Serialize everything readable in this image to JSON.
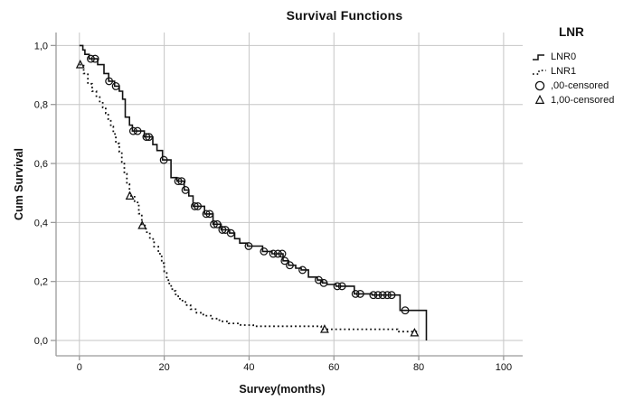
{
  "chart_data": {
    "type": "line",
    "subtype": "kaplan-meier-survival-step",
    "title": "Survival Functions",
    "xlabel": "Survey(months)",
    "ylabel": "Cum Survival",
    "xlim": [
      -5.5,
      104.5
    ],
    "ylim": [
      -0.052,
      1.044
    ],
    "grid": true,
    "x_ticks": {
      "values": [
        0,
        20,
        40,
        60,
        80,
        100
      ],
      "labels": [
        "0",
        "20",
        "40",
        "60",
        "80",
        "100"
      ]
    },
    "y_ticks": {
      "values": [
        0,
        0.2,
        0.4,
        0.6,
        0.8,
        1.0
      ],
      "labels": [
        "0,0",
        "0,2",
        "0,4",
        "0,6",
        "0,8",
        "1,0"
      ]
    },
    "colors": {
      "curve": "#111111",
      "grid": "#c6c6c6",
      "axis": "#9a9a9a",
      "text": "#111111",
      "background": "#ffffff"
    },
    "legend": {
      "title": "LNR",
      "position": "right",
      "entries": [
        {
          "label": "LNR0",
          "symbol": "solid-step-line"
        },
        {
          "label": "LNR1",
          "symbol": "dotted-step-line"
        },
        {
          "label": ",00-censored",
          "symbol": "open-circle"
        },
        {
          "label": "1,00-censored",
          "symbol": "open-triangle"
        }
      ]
    },
    "series": [
      {
        "name": "LNR0",
        "style": "solid-step",
        "steps": [
          [
            0,
            1.0
          ],
          [
            0.8,
            0.985
          ],
          [
            1.3,
            0.97
          ],
          [
            2.3,
            0.955
          ],
          [
            4.3,
            0.935
          ],
          [
            5.8,
            0.905
          ],
          [
            6.9,
            0.879
          ],
          [
            8.3,
            0.862
          ],
          [
            9.4,
            0.845
          ],
          [
            10.2,
            0.818
          ],
          [
            10.8,
            0.757
          ],
          [
            11.8,
            0.73
          ],
          [
            12.5,
            0.71
          ],
          [
            15.3,
            0.69
          ],
          [
            17.3,
            0.664
          ],
          [
            18.3,
            0.644
          ],
          [
            19.6,
            0.612
          ],
          [
            21.6,
            0.552
          ],
          [
            23,
            0.54
          ],
          [
            24.7,
            0.51
          ],
          [
            25.8,
            0.49
          ],
          [
            26.8,
            0.455
          ],
          [
            29.5,
            0.429
          ],
          [
            31.5,
            0.394
          ],
          [
            33.4,
            0.375
          ],
          [
            35.4,
            0.364
          ],
          [
            36.6,
            0.345
          ],
          [
            37.8,
            0.33
          ],
          [
            39.6,
            0.32
          ],
          [
            43.2,
            0.302
          ],
          [
            45.4,
            0.294
          ],
          [
            48,
            0.27
          ],
          [
            49.3,
            0.255
          ],
          [
            51,
            0.245
          ],
          [
            52.3,
            0.239
          ],
          [
            54,
            0.215
          ],
          [
            56.1,
            0.205
          ],
          [
            57.3,
            0.195
          ],
          [
            58.4,
            0.19
          ],
          [
            60.5,
            0.184
          ],
          [
            64.8,
            0.158
          ],
          [
            69,
            0.154
          ],
          [
            75.6,
            0.102
          ],
          [
            81.8,
            0
          ]
        ],
        "censored": {
          "marker": "circle",
          "points": [
            [
              2.7,
              0.955
            ],
            [
              3.7,
              0.955
            ],
            [
              7,
              0.879
            ],
            [
              8.6,
              0.862
            ],
            [
              12.7,
              0.71
            ],
            [
              13.7,
              0.71
            ],
            [
              15.8,
              0.69
            ],
            [
              16.4,
              0.69
            ],
            [
              19.9,
              0.612
            ],
            [
              23.3,
              0.54
            ],
            [
              24.1,
              0.54
            ],
            [
              25,
              0.51
            ],
            [
              27.2,
              0.455
            ],
            [
              27.9,
              0.455
            ],
            [
              29.9,
              0.429
            ],
            [
              30.7,
              0.429
            ],
            [
              31.7,
              0.394
            ],
            [
              32.5,
              0.394
            ],
            [
              33.7,
              0.375
            ],
            [
              34.4,
              0.375
            ],
            [
              35.7,
              0.364
            ],
            [
              39.9,
              0.32
            ],
            [
              43.5,
              0.302
            ],
            [
              45.7,
              0.294
            ],
            [
              46.8,
              0.294
            ],
            [
              47.8,
              0.294
            ],
            [
              48.4,
              0.27
            ],
            [
              49.6,
              0.255
            ],
            [
              52.6,
              0.239
            ],
            [
              56.4,
              0.205
            ],
            [
              57.6,
              0.195
            ],
            [
              60.8,
              0.184
            ],
            [
              61.9,
              0.184
            ],
            [
              65.1,
              0.158
            ],
            [
              66.2,
              0.158
            ],
            [
              69.3,
              0.154
            ],
            [
              70.4,
              0.154
            ],
            [
              71.5,
              0.154
            ],
            [
              72.6,
              0.154
            ],
            [
              73.6,
              0.154
            ],
            [
              76.8,
              0.102
            ]
          ]
        }
      },
      {
        "name": "LNR1",
        "style": "dotted-step",
        "steps": [
          [
            0,
            0.935
          ],
          [
            1,
            0.905
          ],
          [
            2,
            0.87
          ],
          [
            3,
            0.845
          ],
          [
            4,
            0.825
          ],
          [
            4.8,
            0.81
          ],
          [
            5.5,
            0.79
          ],
          [
            6.2,
            0.77
          ],
          [
            6.8,
            0.75
          ],
          [
            7.4,
            0.725
          ],
          [
            8,
            0.7
          ],
          [
            8.6,
            0.668
          ],
          [
            9.4,
            0.64
          ],
          [
            10,
            0.605
          ],
          [
            10.6,
            0.565
          ],
          [
            11.2,
            0.53
          ],
          [
            11.8,
            0.49
          ],
          [
            13,
            0.468
          ],
          [
            14,
            0.43
          ],
          [
            14.7,
            0.39
          ],
          [
            15.7,
            0.367
          ],
          [
            16.6,
            0.344
          ],
          [
            17.6,
            0.318
          ],
          [
            18.6,
            0.294
          ],
          [
            19.4,
            0.262
          ],
          [
            20,
            0.234
          ],
          [
            20.6,
            0.205
          ],
          [
            21.2,
            0.185
          ],
          [
            21.9,
            0.168
          ],
          [
            22.7,
            0.15
          ],
          [
            23.7,
            0.135
          ],
          [
            25,
            0.12
          ],
          [
            26.2,
            0.106
          ],
          [
            27.6,
            0.094
          ],
          [
            29.2,
            0.084
          ],
          [
            31,
            0.074
          ],
          [
            33,
            0.065
          ],
          [
            35.2,
            0.058
          ],
          [
            38,
            0.052
          ],
          [
            41,
            0.048
          ],
          [
            57,
            0.038
          ],
          [
            75,
            0.03
          ],
          [
            80,
            0.03
          ]
        ],
        "censored": {
          "marker": "triangle",
          "points": [
            [
              0.2,
              0.935
            ],
            [
              11.9,
              0.49
            ],
            [
              14.8,
              0.39
            ],
            [
              57.8,
              0.038
            ],
            [
              79,
              0.026
            ]
          ]
        }
      }
    ]
  }
}
